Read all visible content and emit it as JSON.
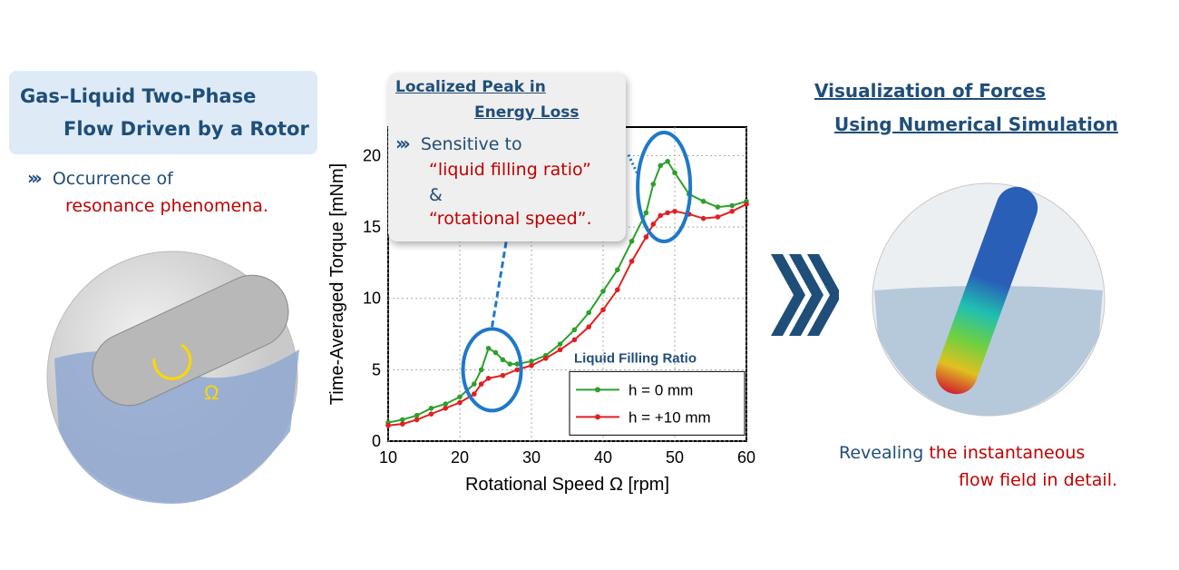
{
  "left": {
    "title_line1": "Gas–Liquid Two-Phase",
    "title_line2": "Flow Driven by a Rotor",
    "bullet_line1": "Occurrence of",
    "bullet_line2": "resonance phenomena.",
    "omega": "Ω"
  },
  "callout": {
    "title_line1": "Localized Peak in",
    "title_line2": "Energy Loss",
    "line1": "Sensitive to",
    "line2": "“liquid filling ratio”",
    "line3": "&",
    "line4": "“rotational speed”."
  },
  "right": {
    "title_line1": "Visualization of Forces",
    "title_line2": "Using Numerical Simulation",
    "caption_navy": "Revealing ",
    "caption_red1": "the instantaneous",
    "caption_red2": "flow field in detail."
  },
  "colors": {
    "navy": "#1f4e79",
    "red": "#c00000",
    "green": "#2ca02c",
    "series_red": "#e02020",
    "highlight": "#1f78c8"
  },
  "chart_data": {
    "type": "line",
    "xlabel": "Rotational Speed Ω [rpm]",
    "ylabel": "Time-Averaged Torque [mNm]",
    "xlim": [
      10,
      60
    ],
    "ylim": [
      0,
      22
    ],
    "xticks": [
      10,
      20,
      30,
      40,
      50,
      60
    ],
    "yticks": [
      0,
      5,
      10,
      15,
      20
    ],
    "grid": true,
    "legend_title": "Liquid Filling Ratio",
    "legend_position": "bottom-right",
    "series": [
      {
        "name": "h = 0 mm",
        "color": "#2ca02c",
        "x": [
          10,
          12,
          14,
          16,
          18,
          20,
          22,
          23,
          24,
          25,
          26,
          27,
          28,
          30,
          32,
          34,
          36,
          38,
          40,
          42,
          44,
          46,
          47,
          48,
          49,
          50,
          52,
          54,
          56,
          58,
          60
        ],
        "y": [
          1.3,
          1.5,
          1.8,
          2.3,
          2.6,
          3.1,
          4.0,
          5.0,
          6.5,
          6.2,
          5.7,
          5.4,
          5.4,
          5.6,
          6.0,
          6.8,
          7.8,
          9.0,
          10.5,
          12.0,
          14.0,
          16.0,
          18.0,
          19.3,
          19.6,
          18.8,
          17.3,
          16.8,
          16.4,
          16.5,
          16.8
        ]
      },
      {
        "name": "h = +10 mm",
        "color": "#e02020",
        "x": [
          10,
          12,
          14,
          16,
          18,
          20,
          22,
          23,
          24,
          26,
          28,
          30,
          32,
          34,
          36,
          38,
          40,
          42,
          44,
          46,
          47,
          48,
          49,
          50,
          52,
          54,
          56,
          58,
          60
        ],
        "y": [
          1.1,
          1.2,
          1.5,
          1.9,
          2.3,
          2.7,
          3.3,
          4.0,
          4.4,
          4.6,
          5.0,
          5.3,
          5.8,
          6.4,
          7.1,
          8.0,
          9.2,
          10.6,
          12.6,
          14.3,
          15.2,
          15.8,
          16.0,
          16.1,
          15.9,
          15.6,
          15.7,
          16.1,
          16.6
        ]
      }
    ]
  }
}
